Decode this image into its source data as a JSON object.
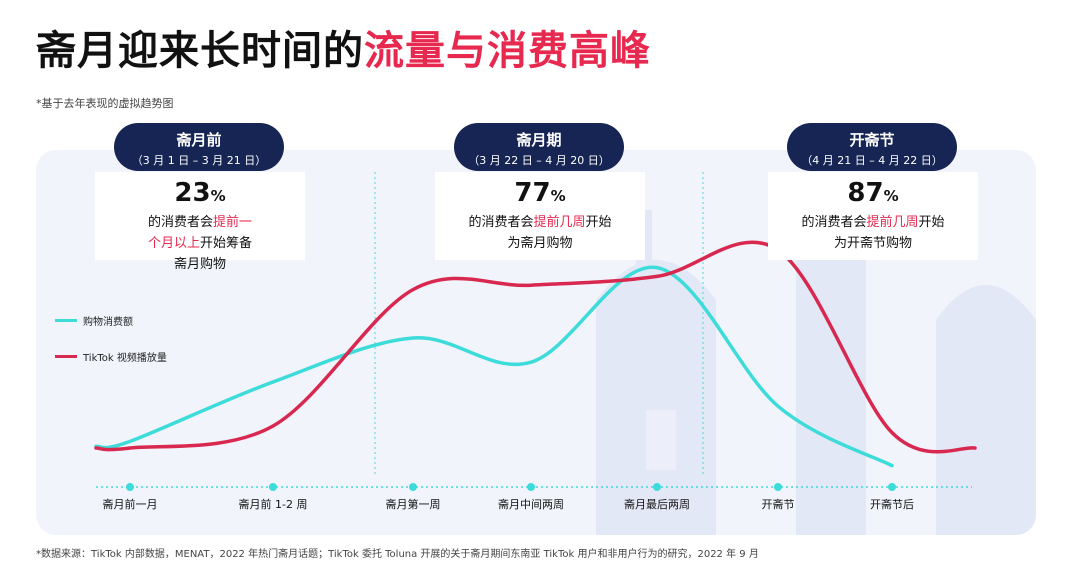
{
  "title": {
    "part1": "斋月迎来长时间的",
    "part2": "流量与消费高峰"
  },
  "note": "*基于去年表现的虚拟趋势图",
  "periods": [
    {
      "name": "斋月前",
      "range": "（3 月 1 日 – 3 月 21 日）",
      "stat": "23",
      "pct_sign": "%",
      "desc_pre": "的消费者会",
      "desc_hl": "提前一个月以上",
      "desc_post": "开始筹备斋月购物"
    },
    {
      "name": "斋月期",
      "range": "（3 月 22 日 – 4 月 20 日）",
      "stat": "77",
      "pct_sign": "%",
      "desc_pre": "的消费者会",
      "desc_hl": "提前几周",
      "desc_post": "开始为斋月购物"
    },
    {
      "name": "开斋节",
      "range": "（4 月 21 日 – 4 月 22 日）",
      "stat": "87",
      "pct_sign": "%",
      "desc_pre": "的消费者会",
      "desc_hl": "提前几周",
      "desc_post": "开始为开斋节购物"
    }
  ],
  "legend": [
    {
      "label": "购物消费额",
      "color": "#3ddbd9"
    },
    {
      "label": "TikTok 视频播放量",
      "color": "#d8284f"
    }
  ],
  "chart_data": {
    "type": "line",
    "categories": [
      "斋月前一月",
      "斋月前 1-2 周",
      "斋月第一周",
      "斋月中间两周",
      "斋月最后两周",
      "开斋节",
      "开斋节后"
    ],
    "series": [
      {
        "name": "购物消费额",
        "color": "#3ddbd9",
        "values": [
          0.13,
          0.4,
          0.6,
          0.49,
          0.92,
          0.29,
          0.02
        ]
      },
      {
        "name": "TikTok 视频播放量",
        "color": "#d8284f",
        "values": [
          0.1,
          0.2,
          0.82,
          0.84,
          0.88,
          1.0,
          0.17
        ]
      }
    ],
    "period_dividers_after": [
      "斋月前 1-2 周",
      "斋月最后两周"
    ],
    "y_axis": "none",
    "grid": false,
    "legend_position": "left"
  },
  "footnote": "*数据来源：TikTok 内部数据，MENAT，2022 年热门斋月话题；TikTok 委托 Toluna 开展的关于斋月期间东南亚 TikTok 用户和非用户行为的研究，2022 年 9 月"
}
